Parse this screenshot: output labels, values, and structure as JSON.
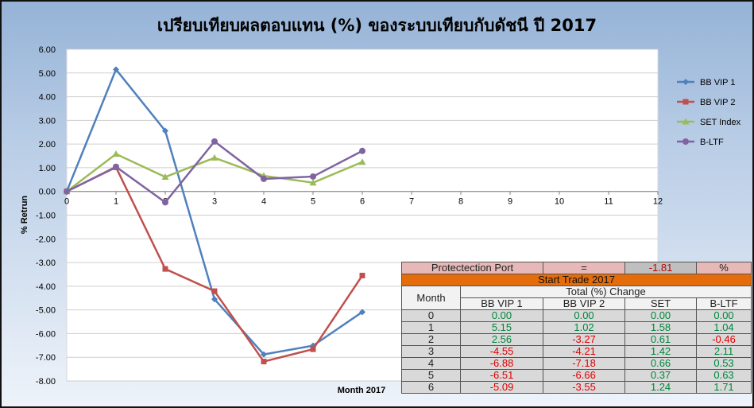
{
  "chart_data": {
    "type": "line",
    "title": "เปรียบเทียบผลตอบแทน (%) ของระบบเทียบกับดัชนี ปี 2017",
    "xlabel": "Month 2017",
    "ylabel": "% Retrun",
    "x": [
      0,
      1,
      2,
      3,
      4,
      5,
      6
    ],
    "xlim": [
      0,
      12
    ],
    "ylim": [
      -8,
      6
    ],
    "x_ticks": [
      "0",
      "1",
      "2",
      "3",
      "4",
      "5",
      "6",
      "7",
      "8",
      "9",
      "10",
      "11",
      "12"
    ],
    "y_ticks": [
      "6.00",
      "5.00",
      "4.00",
      "3.00",
      "2.00",
      "1.00",
      "0.00",
      "-1.00",
      "-2.00",
      "-3.00",
      "-4.00",
      "-5.00",
      "-6.00",
      "-7.00",
      "-8.00"
    ],
    "grid": true,
    "legend_position": "right",
    "series": [
      {
        "name": "BB VIP 1",
        "color": "#4f81bd",
        "marker": "diamond",
        "values": [
          0.0,
          5.15,
          2.56,
          -4.55,
          -6.88,
          -6.51,
          -5.09
        ]
      },
      {
        "name": "BB VIP 2",
        "color": "#c0504d",
        "marker": "square",
        "values": [
          0.0,
          1.02,
          -3.27,
          -4.21,
          -7.18,
          -6.66,
          -3.55
        ]
      },
      {
        "name": "SET Index",
        "color": "#9bbb59",
        "marker": "triangle",
        "values": [
          0.0,
          1.58,
          0.61,
          1.42,
          0.66,
          0.37,
          1.24
        ]
      },
      {
        "name": "B-LTF",
        "color": "#8064a2",
        "marker": "circle",
        "values": [
          0.0,
          1.04,
          -0.46,
          2.11,
          0.53,
          0.63,
          1.71
        ]
      }
    ]
  },
  "table": {
    "protect_label": "Protectection Port",
    "protect_eq": "=",
    "protect_value": "-1.81",
    "protect_unit": "%",
    "start_trade": "Start Trade 2017",
    "month_header": "Month",
    "total_change": "Total (%) Change",
    "columns": [
      "BB VIP 1",
      "BB VIP 2",
      "SET",
      "B-LTF"
    ],
    "rows": [
      [
        "0",
        "0.00",
        "0.00",
        "0.00",
        "0.00"
      ],
      [
        "1",
        "5.15",
        "1.02",
        "1.58",
        "1.04"
      ],
      [
        "2",
        "2.56",
        "-3.27",
        "0.61",
        "-0.46"
      ],
      [
        "3",
        "-4.55",
        "-4.21",
        "1.42",
        "2.11"
      ],
      [
        "4",
        "-6.88",
        "-7.18",
        "0.66",
        "0.53"
      ],
      [
        "5",
        "-6.51",
        "-6.66",
        "0.37",
        "0.63"
      ],
      [
        "6",
        "-5.09",
        "-3.55",
        "1.24",
        "1.71"
      ]
    ]
  }
}
